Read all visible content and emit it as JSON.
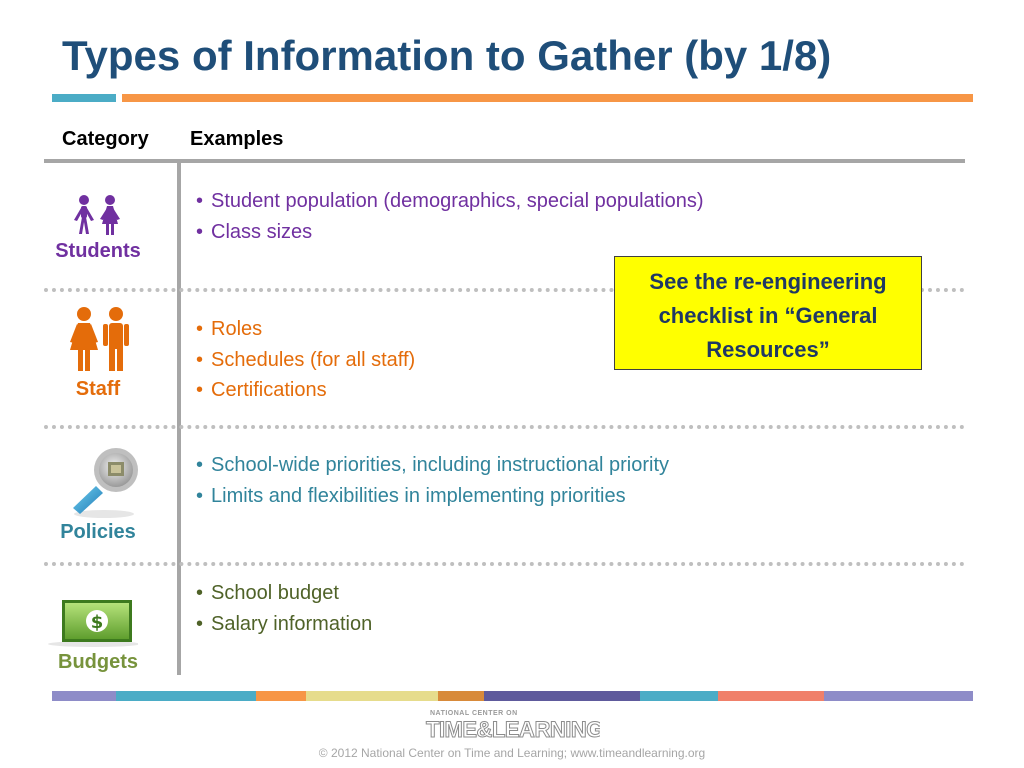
{
  "slide": {
    "title": "Types of Information to Gather (by 1/8)",
    "header": {
      "category": "Category",
      "examples": "Examples"
    }
  },
  "rows": [
    {
      "category": "Students",
      "color": "#7030a0",
      "textcolor": "#7030a0",
      "items": [
        "Student population (demographics, special populations)",
        "Class sizes"
      ]
    },
    {
      "category": "Staff",
      "color": "#e46c0a",
      "textcolor": "#e46c0a",
      "items": [
        "Roles",
        "Schedules (for all staff)",
        "Certifications"
      ]
    },
    {
      "category": "Policies",
      "color": "#31849b",
      "textcolor": "#31849b",
      "items": [
        "School-wide priorities, including instructional priority",
        "Limits and flexibilities in implementing priorities"
      ]
    },
    {
      "category": "Budgets",
      "color": "#77933c",
      "textcolor": "#4f6228",
      "items": [
        "School budget",
        "Salary information"
      ]
    }
  ],
  "callout": {
    "lines": [
      "See the re-engineering",
      "checklist in “General",
      "Resources”"
    ]
  },
  "icons": {
    "students": "students-icon",
    "staff": "staff-icon",
    "policies": "magnifier-icon",
    "budgets": "dollar-bill-icon"
  },
  "footer": {
    "logo_top": "NATIONAL CENTER ON",
    "logo_main": "TIME&LEARNING",
    "copyright": "© 2012 National Center on Time and Learning; www.timeandlearning.org"
  },
  "colors": {
    "title": "#1f4e79",
    "accent_blue": "#4bacc6",
    "accent_orange": "#f79646",
    "callout_bg": "#ffff00"
  }
}
